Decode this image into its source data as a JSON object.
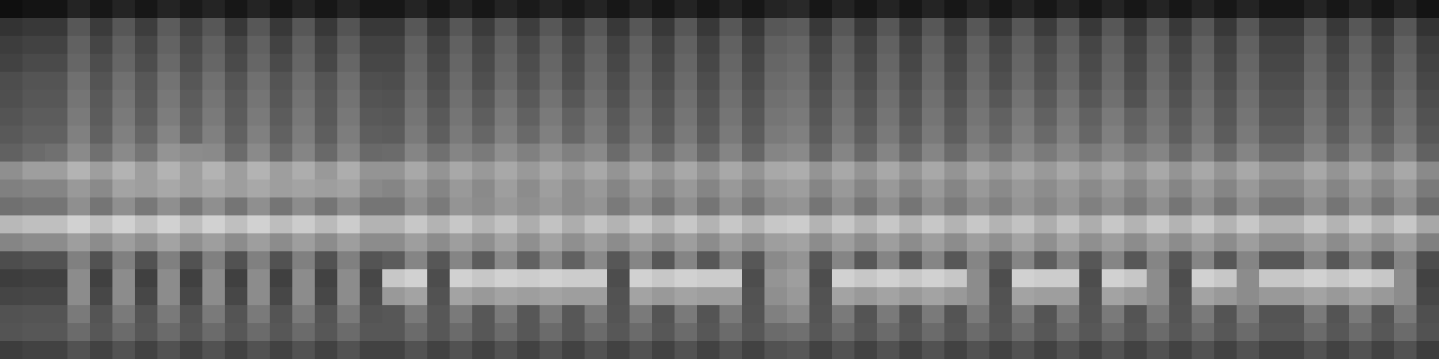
{
  "chart_data": {
    "type": "heatmap",
    "tick_labels": false,
    "grid": false,
    "color_range": [
      0,
      100
    ],
    "cells": [
      [
        6,
        8,
        8,
        14,
        9,
        14,
        9,
        14,
        10,
        14,
        9,
        14,
        9,
        14,
        9,
        14,
        9,
        9,
        14,
        9,
        14,
        9,
        14,
        10,
        14,
        10,
        14,
        9,
        14,
        9,
        14,
        9,
        14,
        9,
        14,
        16,
        9,
        14,
        9,
        14,
        9,
        14,
        9,
        14,
        9,
        14,
        9,
        14,
        9,
        14,
        9,
        14,
        9,
        14,
        9,
        14,
        9,
        9,
        14,
        9,
        14,
        9,
        14,
        8
      ],
      [
        20,
        22,
        22,
        34,
        23,
        34,
        24,
        36,
        26,
        34,
        22,
        34,
        22,
        34,
        22,
        33,
        22,
        22,
        34,
        22,
        34,
        23,
        34,
        24,
        34,
        23,
        34,
        22,
        34,
        22,
        34,
        22,
        34,
        22,
        34,
        36,
        22,
        34,
        22,
        34,
        22,
        34,
        22,
        34,
        22,
        34,
        23,
        34,
        22,
        34,
        22,
        34,
        22,
        34,
        22,
        34,
        22,
        22,
        34,
        22,
        34,
        22,
        34,
        20
      ],
      [
        24,
        26,
        26,
        38,
        27,
        38,
        28,
        39,
        29,
        38,
        27,
        38,
        26,
        38,
        26,
        37,
        26,
        26,
        38,
        26,
        38,
        27,
        38,
        28,
        38,
        27,
        38,
        26,
        38,
        26,
        38,
        26,
        38,
        26,
        38,
        40,
        26,
        38,
        26,
        38,
        26,
        38,
        26,
        38,
        27,
        38,
        28,
        38,
        27,
        38,
        26,
        38,
        26,
        38,
        26,
        38,
        26,
        26,
        38,
        26,
        38,
        26,
        38,
        24
      ],
      [
        26,
        29,
        29,
        40,
        30,
        40,
        30,
        41,
        31,
        40,
        29,
        40,
        29,
        40,
        28,
        40,
        28,
        28,
        40,
        28,
        40,
        29,
        40,
        30,
        40,
        29,
        40,
        28,
        40,
        28,
        40,
        28,
        40,
        28,
        40,
        42,
        28,
        40,
        28,
        40,
        28,
        40,
        28,
        40,
        29,
        40,
        30,
        40,
        29,
        40,
        28,
        40,
        28,
        40,
        28,
        40,
        28,
        28,
        40,
        28,
        40,
        28,
        40,
        26
      ],
      [
        30,
        33,
        33,
        44,
        33,
        44,
        34,
        45,
        34,
        44,
        33,
        44,
        33,
        43,
        33,
        43,
        31,
        30,
        42,
        30,
        42,
        31,
        42,
        32,
        42,
        31,
        42,
        30,
        42,
        30,
        42,
        30,
        42,
        30,
        42,
        44,
        30,
        42,
        30,
        42,
        30,
        42,
        30,
        42,
        31,
        42,
        32,
        42,
        31,
        42,
        30,
        42,
        30,
        42,
        30,
        42,
        30,
        30,
        42,
        30,
        42,
        30,
        42,
        28
      ],
      [
        31,
        34,
        34,
        46,
        35,
        46,
        35,
        47,
        36,
        46,
        35,
        46,
        34,
        45,
        34,
        45,
        33,
        32,
        44,
        32,
        44,
        34,
        45,
        35,
        45,
        34,
        44,
        32,
        44,
        32,
        44,
        32,
        44,
        32,
        44,
        46,
        32,
        44,
        32,
        44,
        32,
        44,
        32,
        44,
        34,
        45,
        35,
        45,
        34,
        44,
        32,
        44,
        32,
        44,
        32,
        44,
        32,
        32,
        44,
        32,
        44,
        32,
        44,
        30
      ],
      [
        33,
        36,
        36,
        48,
        36,
        48,
        37,
        49,
        38,
        48,
        36,
        48,
        36,
        47,
        35,
        47,
        35,
        34,
        46,
        35,
        46,
        37,
        48,
        38,
        48,
        38,
        47,
        35,
        46,
        34,
        46,
        34,
        46,
        34,
        46,
        48,
        34,
        46,
        34,
        46,
        34,
        46,
        35,
        46,
        38,
        48,
        38,
        48,
        38,
        48,
        38,
        46,
        35,
        46,
        34,
        46,
        34,
        34,
        46,
        34,
        46,
        34,
        46,
        32
      ],
      [
        35,
        38,
        38,
        50,
        38,
        50,
        40,
        52,
        40,
        50,
        38,
        50,
        38,
        49,
        37,
        49,
        37,
        36,
        48,
        37,
        48,
        40,
        50,
        41,
        50,
        40,
        49,
        37,
        48,
        36,
        48,
        36,
        48,
        36,
        48,
        50,
        36,
        48,
        37,
        48,
        37,
        48,
        37,
        48,
        40,
        50,
        41,
        50,
        40,
        50,
        40,
        48,
        37,
        48,
        36,
        48,
        37,
        37,
        48,
        37,
        48,
        37,
        48,
        34
      ],
      [
        38,
        42,
        44,
        54,
        44,
        54,
        46,
        58,
        55,
        54,
        42,
        54,
        42,
        52,
        41,
        52,
        41,
        42,
        52,
        44,
        52,
        48,
        56,
        50,
        56,
        50,
        54,
        42,
        52,
        42,
        52,
        41,
        52,
        40,
        52,
        54,
        40,
        52,
        41,
        52,
        41,
        52,
        42,
        52,
        46,
        54,
        48,
        54,
        48,
        54,
        48,
        52,
        42,
        52,
        42,
        52,
        42,
        42,
        52,
        42,
        52,
        42,
        52,
        38
      ],
      [
        56,
        62,
        62,
        70,
        62,
        70,
        62,
        70,
        62,
        70,
        62,
        70,
        62,
        68,
        60,
        68,
        58,
        58,
        66,
        58,
        66,
        60,
        66,
        60,
        66,
        60,
        66,
        58,
        66,
        58,
        66,
        58,
        66,
        58,
        66,
        68,
        58,
        66,
        58,
        66,
        58,
        66,
        58,
        66,
        60,
        66,
        60,
        66,
        60,
        66,
        58,
        66,
        58,
        66,
        58,
        66,
        58,
        58,
        66,
        58,
        66,
        58,
        66,
        54
      ],
      [
        50,
        52,
        52,
        60,
        54,
        64,
        62,
        66,
        62,
        66,
        62,
        66,
        62,
        64,
        62,
        64,
        54,
        52,
        60,
        52,
        60,
        54,
        62,
        55,
        62,
        55,
        60,
        52,
        60,
        52,
        60,
        52,
        60,
        52,
        60,
        62,
        52,
        60,
        52,
        60,
        52,
        60,
        52,
        60,
        54,
        60,
        55,
        60,
        54,
        60,
        52,
        60,
        52,
        60,
        52,
        60,
        52,
        52,
        60,
        52,
        60,
        52,
        60,
        48
      ],
      [
        44,
        46,
        46,
        56,
        46,
        56,
        47,
        56,
        47,
        56,
        46,
        56,
        46,
        55,
        46,
        55,
        46,
        46,
        56,
        48,
        58,
        55,
        60,
        56,
        60,
        55,
        58,
        48,
        56,
        46,
        56,
        46,
        56,
        46,
        56,
        58,
        46,
        56,
        46,
        56,
        46,
        56,
        48,
        56,
        50,
        58,
        52,
        58,
        50,
        56,
        48,
        56,
        46,
        56,
        46,
        56,
        46,
        46,
        56,
        46,
        56,
        46,
        56,
        42
      ],
      [
        72,
        75,
        75,
        82,
        75,
        82,
        75,
        82,
        74,
        82,
        75,
        82,
        74,
        80,
        73,
        80,
        70,
        70,
        78,
        70,
        78,
        70,
        76,
        68,
        76,
        68,
        76,
        70,
        78,
        70,
        78,
        70,
        78,
        70,
        78,
        80,
        70,
        78,
        70,
        78,
        70,
        78,
        70,
        78,
        70,
        76,
        68,
        76,
        68,
        78,
        70,
        78,
        70,
        78,
        70,
        78,
        70,
        70,
        78,
        70,
        78,
        70,
        78,
        66
      ],
      [
        52,
        55,
        55,
        62,
        55,
        62,
        56,
        64,
        56,
        62,
        55,
        62,
        55,
        62,
        55,
        62,
        55,
        55,
        62,
        55,
        62,
        56,
        64,
        56,
        64,
        56,
        62,
        55,
        62,
        55,
        62,
        55,
        62,
        55,
        62,
        64,
        55,
        62,
        55,
        62,
        55,
        62,
        55,
        62,
        56,
        64,
        56,
        64,
        56,
        62,
        55,
        62,
        55,
        62,
        55,
        62,
        55,
        55,
        62,
        55,
        62,
        55,
        62,
        50
      ],
      [
        30,
        32,
        32,
        50,
        32,
        50,
        32,
        50,
        32,
        50,
        32,
        50,
        32,
        50,
        32,
        50,
        33,
        36,
        52,
        34,
        52,
        36,
        54,
        38,
        54,
        38,
        54,
        34,
        52,
        34,
        52,
        34,
        52,
        34,
        54,
        58,
        34,
        52,
        34,
        52,
        34,
        52,
        34,
        52,
        36,
        52,
        36,
        52,
        34,
        52,
        34,
        52,
        34,
        52,
        34,
        52,
        34,
        34,
        52,
        34,
        52,
        34,
        52,
        30
      ],
      [
        24,
        25,
        25,
        55,
        25,
        55,
        25,
        55,
        25,
        55,
        25,
        55,
        25,
        55,
        26,
        55,
        28,
        78,
        82,
        30,
        82,
        78,
        82,
        80,
        82,
        80,
        80,
        30,
        82,
        78,
        82,
        80,
        80,
        30,
        58,
        62,
        30,
        82,
        78,
        82,
        78,
        82,
        78,
        55,
        30,
        82,
        80,
        80,
        30,
        82,
        78,
        55,
        30,
        82,
        78,
        55,
        78,
        78,
        82,
        78,
        82,
        78,
        55,
        26
      ],
      [
        27,
        28,
        28,
        55,
        28,
        55,
        28,
        55,
        28,
        55,
        28,
        55,
        28,
        55,
        28,
        55,
        30,
        60,
        64,
        32,
        64,
        60,
        64,
        62,
        64,
        62,
        62,
        32,
        64,
        60,
        64,
        62,
        62,
        32,
        56,
        60,
        32,
        64,
        60,
        64,
        60,
        64,
        60,
        55,
        32,
        64,
        62,
        62,
        32,
        64,
        60,
        55,
        32,
        64,
        60,
        55,
        60,
        60,
        64,
        60,
        64,
        60,
        55,
        28
      ],
      [
        32,
        33,
        33,
        48,
        33,
        48,
        33,
        48,
        33,
        48,
        33,
        48,
        33,
        48,
        33,
        48,
        33,
        34,
        48,
        34,
        48,
        34,
        48,
        34,
        48,
        34,
        48,
        33,
        48,
        33,
        48,
        33,
        48,
        33,
        50,
        54,
        33,
        48,
        33,
        48,
        33,
        48,
        33,
        48,
        33,
        48,
        33,
        48,
        33,
        48,
        33,
        48,
        33,
        48,
        33,
        48,
        33,
        33,
        48,
        33,
        48,
        33,
        48,
        31
      ],
      [
        33,
        34,
        34,
        42,
        34,
        42,
        34,
        42,
        34,
        42,
        34,
        42,
        34,
        42,
        34,
        42,
        34,
        34,
        42,
        34,
        42,
        34,
        42,
        34,
        42,
        34,
        42,
        34,
        42,
        34,
        42,
        34,
        42,
        34,
        42,
        44,
        34,
        42,
        34,
        42,
        34,
        42,
        34,
        42,
        34,
        42,
        34,
        42,
        34,
        42,
        34,
        42,
        34,
        42,
        34,
        42,
        34,
        34,
        42,
        34,
        42,
        34,
        42,
        32
      ],
      [
        24,
        26,
        26,
        32,
        26,
        32,
        26,
        32,
        26,
        32,
        26,
        32,
        26,
        32,
        26,
        32,
        26,
        26,
        32,
        26,
        32,
        26,
        32,
        26,
        32,
        26,
        32,
        26,
        32,
        26,
        32,
        26,
        32,
        26,
        32,
        34,
        26,
        32,
        26,
        32,
        26,
        32,
        26,
        32,
        26,
        32,
        26,
        32,
        26,
        32,
        26,
        32,
        26,
        32,
        26,
        32,
        26,
        26,
        32,
        26,
        32,
        26,
        32,
        24
      ]
    ]
  }
}
